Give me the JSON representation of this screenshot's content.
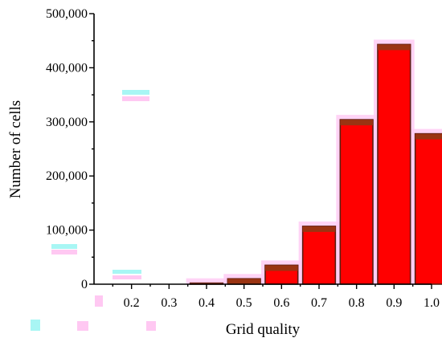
{
  "chart_data": {
    "type": "bar",
    "title": "",
    "xlabel": "Grid quality",
    "ylabel": "Number of cells",
    "xlim": [
      0.1,
      1.0
    ],
    "ylim": [
      0,
      500000
    ],
    "x_ticks": [
      "0.2",
      "0.3",
      "0.4",
      "0.5",
      "0.6",
      "0.7",
      "0.8",
      "0.9",
      "1.0"
    ],
    "y_ticks": [
      "0",
      "100,000",
      "200,000",
      "300,000",
      "400,000",
      "500,000"
    ],
    "y_tick_values": [
      0,
      100000,
      200000,
      300000,
      400000,
      500000
    ],
    "x_tick_values": [
      0.2,
      0.3,
      0.4,
      0.5,
      0.6,
      0.7,
      0.8,
      0.9,
      1.0
    ],
    "bins": [
      {
        "x0": 0.35,
        "x1": 0.45,
        "value": 2000
      },
      {
        "x0": 0.45,
        "x1": 0.55,
        "value": 10000
      },
      {
        "x0": 0.55,
        "x1": 0.65,
        "value": 35000
      },
      {
        "x0": 0.65,
        "x1": 0.75,
        "value": 107000
      },
      {
        "x0": 0.75,
        "x1": 0.85,
        "value": 304000
      },
      {
        "x0": 0.85,
        "x1": 0.95,
        "value": 443000
      },
      {
        "x0": 0.95,
        "x1": 1.05,
        "value": 278000
      }
    ],
    "grid": false,
    "legend": "none",
    "colors": {
      "bar_fill": "#ff0000",
      "bar_edge": "#5a1e12",
      "bar_cap": "#9a3412",
      "glow": "#ffccf5"
    }
  }
}
